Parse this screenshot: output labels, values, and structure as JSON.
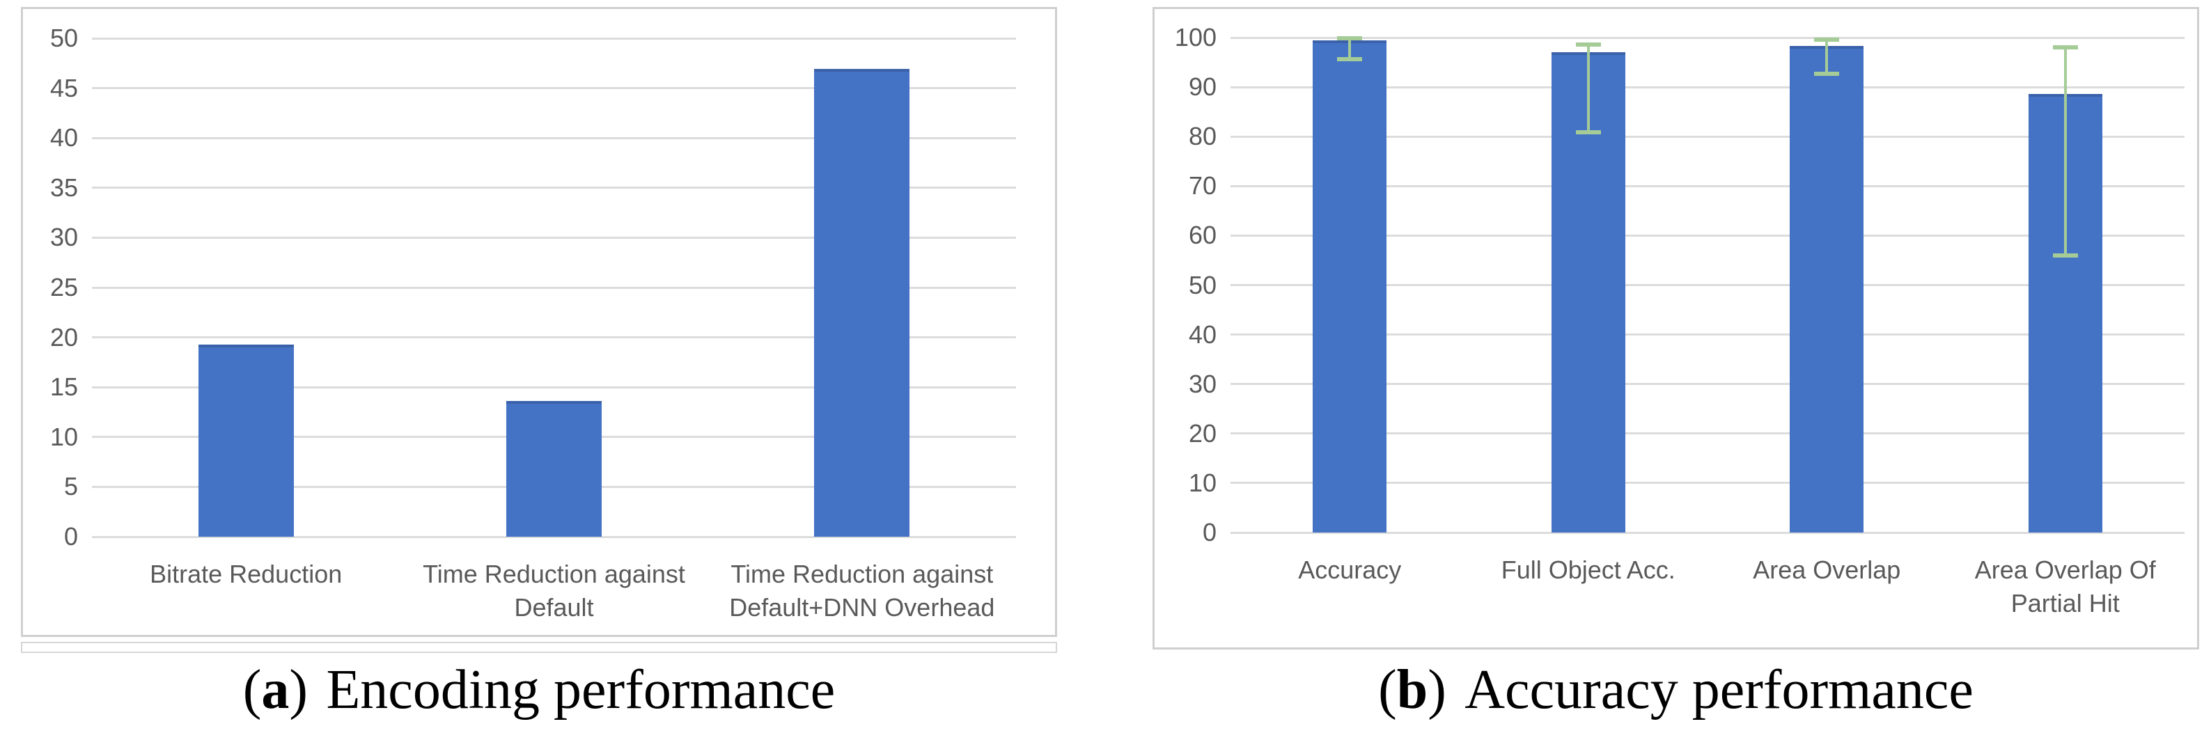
{
  "figure": {
    "captions": [
      {
        "open": "(",
        "marker": "a",
        "close": ")",
        "label": "Encoding performance"
      },
      {
        "open": "(",
        "marker": "b",
        "close": ")",
        "label": "Accuracy performance"
      }
    ]
  },
  "colors": {
    "bar": "#4472C4",
    "bar_top_edge": "#3a61a9",
    "error_bar": "#a5cc97",
    "gridline": "#dcdcdc",
    "tick_text": "#595959",
    "panel_border": "#cfcfcf"
  },
  "chart_data": [
    {
      "type": "bar",
      "title": "(a) Encoding performance",
      "categories_text": [
        "Bitrate Reduction",
        "Time Reduction against Default",
        "Time Reduction against Default+DNN Overhead"
      ],
      "categories": [
        [
          "Bitrate Reduction"
        ],
        [
          "Time Reduction against",
          "Default"
        ],
        [
          "Time Reduction against",
          "Default+DNN Overhead"
        ]
      ],
      "values": [
        19.3,
        13.6,
        46.9
      ],
      "xlabel": "",
      "ylabel": "",
      "ylim": [
        0,
        50
      ],
      "ytick_step": 5,
      "grid": true,
      "legend": "none"
    },
    {
      "type": "bar",
      "title": "(b) Accuracy performance",
      "categories_text": [
        "Accuracy",
        "Full Object Acc.",
        "Area Overlap",
        "Area Overlap Of Partial Hit"
      ],
      "categories": [
        [
          "Accuracy"
        ],
        [
          "Full Object Acc."
        ],
        [
          "Area Overlap"
        ],
        [
          "Area Overlap Of",
          "Partial Hit"
        ]
      ],
      "values": [
        99.4,
        97.1,
        98.3,
        88.6
      ],
      "error_bars": {
        "low": [
          95.2,
          80.5,
          92.3,
          55.5
        ],
        "high": [
          100.3,
          99.0,
          100.0,
          98.4
        ]
      },
      "xlabel": "",
      "ylabel": "",
      "ylim": [
        0,
        100
      ],
      "ytick_step": 10,
      "grid": true,
      "legend": "none"
    }
  ]
}
